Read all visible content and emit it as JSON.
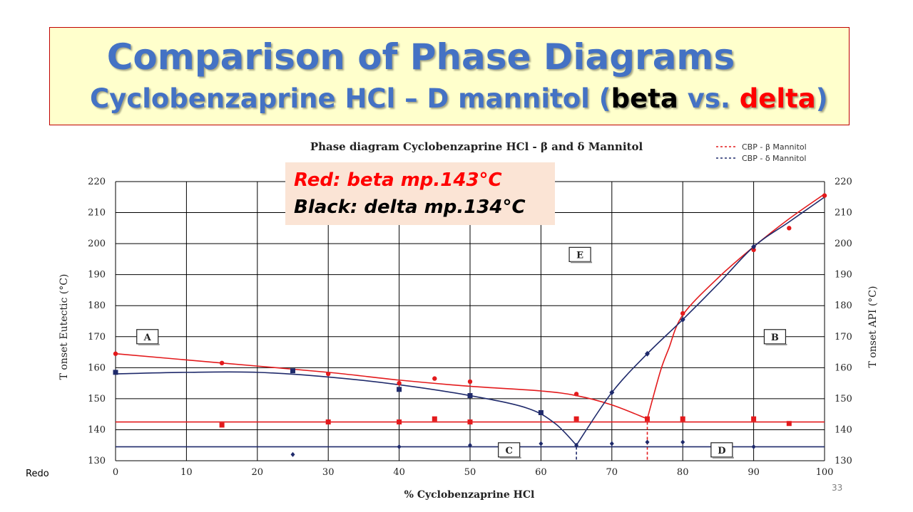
{
  "slide": {
    "title_line1": "Comparison of Phase Diagrams",
    "title_line2_prefix": "Cyclobenzaprine HCl – D mannitol (",
    "title_line2_beta": "beta",
    "title_line2_mid": " vs. ",
    "title_line2_delta": "delta",
    "title_line2_suffix": ")",
    "side_label": "Redo",
    "page_number": "33"
  },
  "note": {
    "red_line": "Red:   beta mp.143°C",
    "black_line": "Black: delta mp.134°C"
  },
  "colors": {
    "title_blue": "#4472c4",
    "red": "#e31a1c",
    "navy": "#1f2a6b",
    "grid": "#000000"
  },
  "chart_data": {
    "type": "line",
    "title": "Phase diagram  Cyclobenzaprine  HCl - β and δ Mannitol",
    "xlabel": "% Cyclobenzaprine HCl",
    "ylabel_left": "T onset Eutectic (°C)",
    "ylabel_right": "T onset API (°C)",
    "xlim": [
      0,
      100
    ],
    "ylim": [
      130,
      220
    ],
    "x_ticks": [
      0,
      10,
      20,
      30,
      40,
      50,
      60,
      70,
      80,
      90,
      100
    ],
    "y_ticks": [
      130,
      140,
      150,
      160,
      170,
      180,
      190,
      200,
      210,
      220
    ],
    "grid": true,
    "legend": [
      "CBP - β Mannitol",
      "CBP - δ Mannitol"
    ],
    "legend_position": "top-right",
    "region_labels": [
      {
        "label": "A",
        "x": 4.5,
        "y": 170
      },
      {
        "label": "E",
        "x": 65.5,
        "y": 196.5
      },
      {
        "label": "B",
        "x": 93,
        "y": 170
      },
      {
        "label": "C",
        "x": 55.5,
        "y": 133.5
      },
      {
        "label": "D",
        "x": 85.5,
        "y": 133.5
      }
    ],
    "series": [
      {
        "name": "CBP - β Mannitol",
        "color": "red",
        "liquidus_curve": [
          [
            0,
            164.5
          ],
          [
            15,
            161.5
          ],
          [
            30,
            158.5
          ],
          [
            40,
            156
          ],
          [
            50,
            154
          ],
          [
            60,
            152.5
          ],
          [
            65,
            151
          ],
          [
            70,
            148
          ],
          [
            75,
            143.5
          ]
        ],
        "api_curve": [
          [
            75,
            143.5
          ],
          [
            76,
            152
          ],
          [
            77,
            160
          ],
          [
            78,
            166
          ],
          [
            80,
            177
          ],
          [
            85,
            189
          ],
          [
            90,
            199
          ],
          [
            95,
            208
          ],
          [
            100,
            216
          ]
        ],
        "eutectic_line": 142.5,
        "eutectic_drop_x": 75,
        "liquidus_points": [
          [
            0,
            164.5
          ],
          [
            15,
            161.5
          ],
          [
            30,
            158
          ],
          [
            40,
            155
          ],
          [
            45,
            156.5
          ],
          [
            50,
            155.5
          ],
          [
            65,
            151.5
          ],
          [
            80,
            177.5
          ],
          [
            90,
            198
          ],
          [
            95,
            205
          ],
          [
            100,
            215.5
          ]
        ],
        "eutectic_points": [
          [
            15,
            141.5
          ],
          [
            30,
            142.5
          ],
          [
            40,
            142.5
          ],
          [
            45,
            143.5
          ],
          [
            50,
            142.5
          ],
          [
            65,
            143.5
          ],
          [
            75,
            143.5
          ],
          [
            80,
            143.5
          ],
          [
            90,
            143.5
          ],
          [
            95,
            142
          ]
        ]
      },
      {
        "name": "CBP - δ Mannitol",
        "color": "navy",
        "liquidus_curve": [
          [
            0,
            158
          ],
          [
            10,
            158.5
          ],
          [
            20,
            158.5
          ],
          [
            30,
            157
          ],
          [
            40,
            154.5
          ],
          [
            50,
            151
          ],
          [
            58,
            147
          ],
          [
            62,
            142
          ],
          [
            65,
            135
          ]
        ],
        "api_curve": [
          [
            65,
            135
          ],
          [
            70,
            152
          ],
          [
            75,
            164.5
          ],
          [
            80,
            175.5
          ],
          [
            85,
            187
          ],
          [
            90,
            199
          ],
          [
            95,
            207
          ],
          [
            100,
            215
          ]
        ],
        "eutectic_line": 134.5,
        "eutectic_drop_x": 65,
        "liquidus_points": [
          [
            0,
            158.5
          ],
          [
            25,
            159
          ],
          [
            40,
            153
          ],
          [
            50,
            151
          ],
          [
            60,
            145.5
          ]
        ],
        "api_points": [
          [
            70,
            152
          ],
          [
            75,
            164.5
          ],
          [
            80,
            175.5
          ],
          [
            90,
            199
          ]
        ],
        "eutectic_points": [
          [
            25,
            132
          ],
          [
            40,
            134.5
          ],
          [
            50,
            135
          ],
          [
            60,
            135.5
          ],
          [
            65,
            135
          ],
          [
            70,
            135.5
          ],
          [
            75,
            136
          ],
          [
            80,
            136
          ],
          [
            90,
            134.5
          ]
        ]
      }
    ]
  }
}
